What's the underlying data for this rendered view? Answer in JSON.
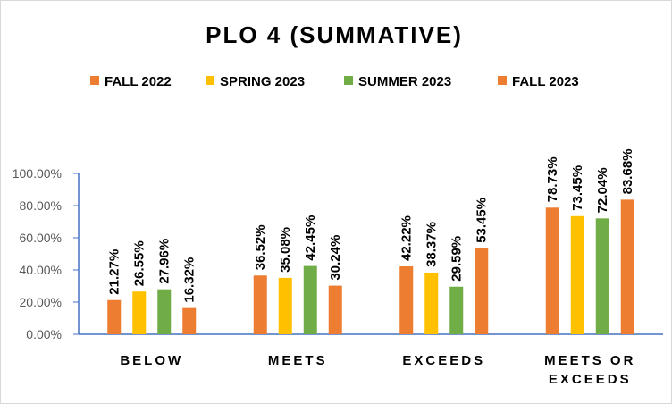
{
  "chart_data": {
    "type": "bar",
    "title": "PLO 4 (SUMMATIVE)",
    "categories": [
      "BELOW",
      "MEETS",
      "EXCEEDS",
      "MEETS OR EXCEEDS"
    ],
    "category_lines": [
      [
        "BELOW"
      ],
      [
        "MEETS"
      ],
      [
        "EXCEEDS"
      ],
      [
        "MEETS OR",
        "EXCEEDS"
      ]
    ],
    "series": [
      {
        "name": "FALL 2022",
        "color": "#ED7D31",
        "values": [
          21.27,
          36.52,
          42.22,
          78.73
        ],
        "labels": [
          "21.27%",
          "36.52%",
          "42.22%",
          "78.73%"
        ]
      },
      {
        "name": "SPRING 2023",
        "color": "#FFC000",
        "values": [
          26.55,
          35.08,
          38.37,
          73.45
        ],
        "labels": [
          "26.55%",
          "35.08%",
          "38.37%",
          "73.45%"
        ]
      },
      {
        "name": "SUMMER 2023",
        "color": "#70AD47",
        "values": [
          27.96,
          42.45,
          29.59,
          72.04
        ],
        "labels": [
          "27.96%",
          "42.45%",
          "29.59%",
          "72.04%"
        ]
      },
      {
        "name": "FALL 2023",
        "color": "#ED7D31",
        "values": [
          16.32,
          30.24,
          53.45,
          83.68
        ],
        "labels": [
          "16.32%",
          "30.24%",
          "53.45%",
          "83.68%"
        ]
      }
    ],
    "ylim": [
      0,
      100
    ],
    "yticks": [
      "0.00%",
      "20.00%",
      "40.00%",
      "60.00%",
      "80.00%",
      "100.00%"
    ],
    "legend_position": "top",
    "grid": false,
    "data_labels": "vertical above bars"
  }
}
